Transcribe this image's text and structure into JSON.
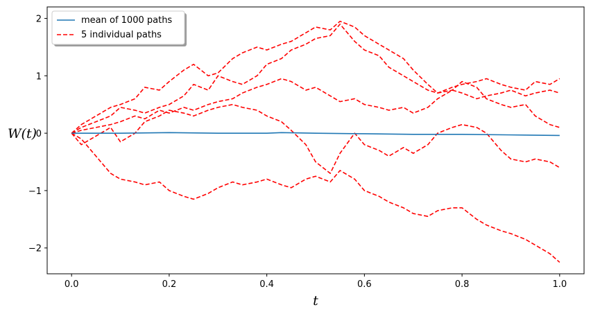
{
  "chart_data": {
    "type": "line",
    "xlabel": "t",
    "ylabel": "W(t)",
    "xlim": [
      -0.05,
      1.05
    ],
    "ylim": [
      -2.45,
      2.2
    ],
    "x_ticks": [
      0.0,
      0.2,
      0.4,
      0.6,
      0.8,
      1.0
    ],
    "x_tick_labels": [
      "0.0",
      "0.2",
      "0.4",
      "0.6",
      "0.8",
      "1.0"
    ],
    "y_ticks": [
      2,
      1,
      0,
      -1,
      -2
    ],
    "y_tick_labels": [
      "2",
      "1",
      "0",
      "−1",
      "−2"
    ],
    "grid": false,
    "legend_position": "top-left",
    "legend": [
      {
        "label": "mean of 1000 paths",
        "color": "#1f77b4",
        "style": "solid"
      },
      {
        "label": "5 individual paths",
        "color": "#ff0000",
        "style": "dashed"
      }
    ],
    "series": [
      {
        "name": "mean of 1000 paths",
        "color": "#1f77b4",
        "style": "solid",
        "x": [
          0.0,
          0.1,
          0.2,
          0.3,
          0.4,
          0.43,
          0.5,
          0.6,
          0.7,
          0.8,
          0.9,
          1.0
        ],
        "y": [
          0.0,
          0.0,
          0.01,
          0.0,
          0.0,
          0.01,
          0.0,
          -0.01,
          -0.02,
          -0.02,
          -0.03,
          -0.04
        ]
      },
      {
        "name": "5 individual paths",
        "color": "#ff0000",
        "style": "dashed",
        "x": [
          0.0,
          0.02,
          0.05,
          0.08,
          0.1,
          0.13,
          0.15,
          0.18,
          0.2,
          0.23,
          0.25,
          0.28,
          0.3,
          0.33,
          0.35,
          0.38,
          0.4,
          0.43,
          0.45,
          0.48,
          0.5,
          0.53,
          0.55,
          0.58,
          0.6,
          0.63,
          0.65,
          0.68,
          0.7,
          0.73,
          0.75,
          0.78,
          0.8,
          0.83,
          0.85,
          0.88,
          0.9,
          0.93,
          0.95,
          0.98,
          1.0
        ],
        "y": [
          0.0,
          0.15,
          0.3,
          0.45,
          0.5,
          0.6,
          0.8,
          0.75,
          0.9,
          1.1,
          1.2,
          1.0,
          1.05,
          1.3,
          1.4,
          1.5,
          1.45,
          1.55,
          1.6,
          1.75,
          1.85,
          1.8,
          1.95,
          1.85,
          1.7,
          1.55,
          1.45,
          1.3,
          1.1,
          0.85,
          0.7,
          0.75,
          0.9,
          0.8,
          0.6,
          0.5,
          0.45,
          0.5,
          0.3,
          0.15,
          0.1
        ]
      },
      {
        "x": [
          0.0,
          0.02,
          0.05,
          0.08,
          0.1,
          0.13,
          0.15,
          0.18,
          0.2,
          0.23,
          0.25,
          0.28,
          0.3,
          0.33,
          0.35,
          0.38,
          0.4,
          0.43,
          0.45,
          0.48,
          0.5,
          0.53,
          0.55,
          0.58,
          0.6,
          0.63,
          0.65,
          0.68,
          0.7,
          0.73,
          0.75,
          0.78,
          0.8,
          0.83,
          0.85,
          0.88,
          0.9,
          0.93,
          0.95,
          0.98,
          1.0
        ],
        "y": [
          0.0,
          0.1,
          0.2,
          0.3,
          0.45,
          0.4,
          0.35,
          0.45,
          0.5,
          0.65,
          0.85,
          0.75,
          1.0,
          0.9,
          0.85,
          1.0,
          1.2,
          1.3,
          1.45,
          1.55,
          1.65,
          1.7,
          1.9,
          1.6,
          1.45,
          1.35,
          1.15,
          1.0,
          0.9,
          0.75,
          0.7,
          0.8,
          0.85,
          0.9,
          0.95,
          0.85,
          0.8,
          0.75,
          0.9,
          0.85,
          0.95
        ]
      },
      {
        "x": [
          0.0,
          0.02,
          0.05,
          0.08,
          0.1,
          0.13,
          0.15,
          0.18,
          0.2,
          0.23,
          0.25,
          0.28,
          0.3,
          0.33,
          0.35,
          0.38,
          0.4,
          0.43,
          0.45,
          0.48,
          0.5,
          0.53,
          0.55,
          0.58,
          0.6,
          0.63,
          0.65,
          0.68,
          0.7,
          0.73,
          0.75,
          0.78,
          0.8,
          0.83,
          0.85,
          0.88,
          0.9,
          0.93,
          0.95,
          0.98,
          1.0
        ],
        "y": [
          0.0,
          0.05,
          0.1,
          0.15,
          0.2,
          0.3,
          0.25,
          0.4,
          0.35,
          0.45,
          0.4,
          0.5,
          0.55,
          0.6,
          0.7,
          0.8,
          0.85,
          0.95,
          0.9,
          0.75,
          0.8,
          0.65,
          0.55,
          0.6,
          0.5,
          0.45,
          0.4,
          0.45,
          0.35,
          0.45,
          0.6,
          0.75,
          0.7,
          0.6,
          0.65,
          0.7,
          0.75,
          0.65,
          0.7,
          0.75,
          0.7
        ]
      },
      {
        "x": [
          0.0,
          0.02,
          0.05,
          0.08,
          0.1,
          0.13,
          0.15,
          0.18,
          0.2,
          0.23,
          0.25,
          0.28,
          0.3,
          0.33,
          0.35,
          0.38,
          0.4,
          0.43,
          0.45,
          0.48,
          0.5,
          0.53,
          0.55,
          0.58,
          0.6,
          0.63,
          0.65,
          0.68,
          0.7,
          0.73,
          0.75,
          0.78,
          0.8,
          0.83,
          0.85,
          0.88,
          0.9,
          0.93,
          0.95,
          0.98,
          1.0
        ],
        "y": [
          0.0,
          -0.2,
          -0.05,
          0.1,
          -0.15,
          0.0,
          0.2,
          0.3,
          0.4,
          0.35,
          0.3,
          0.4,
          0.45,
          0.5,
          0.45,
          0.4,
          0.3,
          0.2,
          0.05,
          -0.2,
          -0.5,
          -0.7,
          -0.35,
          0.0,
          -0.2,
          -0.3,
          -0.4,
          -0.25,
          -0.35,
          -0.2,
          0.0,
          0.1,
          0.15,
          0.1,
          0.0,
          -0.3,
          -0.45,
          -0.5,
          -0.45,
          -0.5,
          -0.6
        ]
      },
      {
        "x": [
          0.0,
          0.02,
          0.05,
          0.08,
          0.1,
          0.13,
          0.15,
          0.18,
          0.2,
          0.23,
          0.25,
          0.28,
          0.3,
          0.33,
          0.35,
          0.38,
          0.4,
          0.43,
          0.45,
          0.48,
          0.5,
          0.53,
          0.55,
          0.58,
          0.6,
          0.63,
          0.65,
          0.68,
          0.7,
          0.73,
          0.75,
          0.78,
          0.8,
          0.83,
          0.85,
          0.88,
          0.9,
          0.93,
          0.95,
          0.98,
          1.0
        ],
        "y": [
          0.0,
          -0.1,
          -0.4,
          -0.7,
          -0.8,
          -0.85,
          -0.9,
          -0.85,
          -1.0,
          -1.1,
          -1.15,
          -1.05,
          -0.95,
          -0.85,
          -0.9,
          -0.85,
          -0.8,
          -0.9,
          -0.95,
          -0.8,
          -0.75,
          -0.85,
          -0.65,
          -0.8,
          -1.0,
          -1.1,
          -1.2,
          -1.3,
          -1.4,
          -1.45,
          -1.35,
          -1.3,
          -1.3,
          -1.5,
          -1.6,
          -1.7,
          -1.75,
          -1.85,
          -1.95,
          -2.1,
          -2.25
        ]
      }
    ]
  }
}
